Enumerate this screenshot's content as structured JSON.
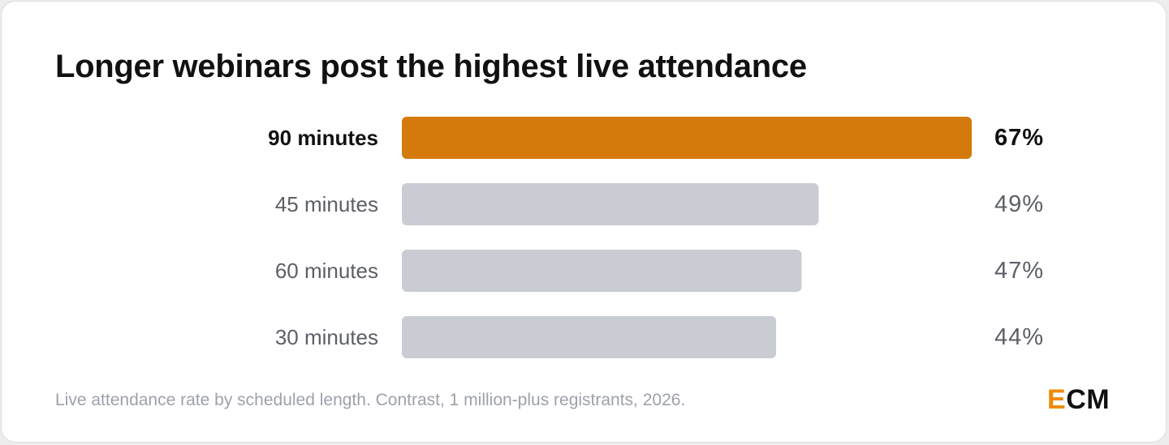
{
  "title": "Longer webinars post the highest live attendance",
  "footnote": "Live attendance rate by scheduled length. Contrast, 1 million-plus registrants, 2026.",
  "logo": {
    "first_letter": "E",
    "rest": "CM",
    "first_letter_color": "#ee8a00",
    "rest_color": "#111111"
  },
  "colors": {
    "highlight_bar": "#d4790b",
    "default_bar": "#c9ccd3",
    "highlight_text": "#111111",
    "default_text": "#5c5f66"
  },
  "chart_data": {
    "type": "bar",
    "orientation": "horizontal",
    "categories": [
      "90 minutes",
      "45 minutes",
      "60 minutes",
      "30 minutes"
    ],
    "values": [
      67,
      49,
      47,
      44
    ],
    "value_labels": [
      "67%",
      "49%",
      "47%",
      "44%"
    ],
    "highlight_index": 0,
    "unit": "%",
    "title": "Longer webinars post the highest live attendance",
    "xlabel": "",
    "ylabel": "",
    "xlim": [
      0,
      67
    ],
    "grid": false,
    "legend": "none"
  }
}
